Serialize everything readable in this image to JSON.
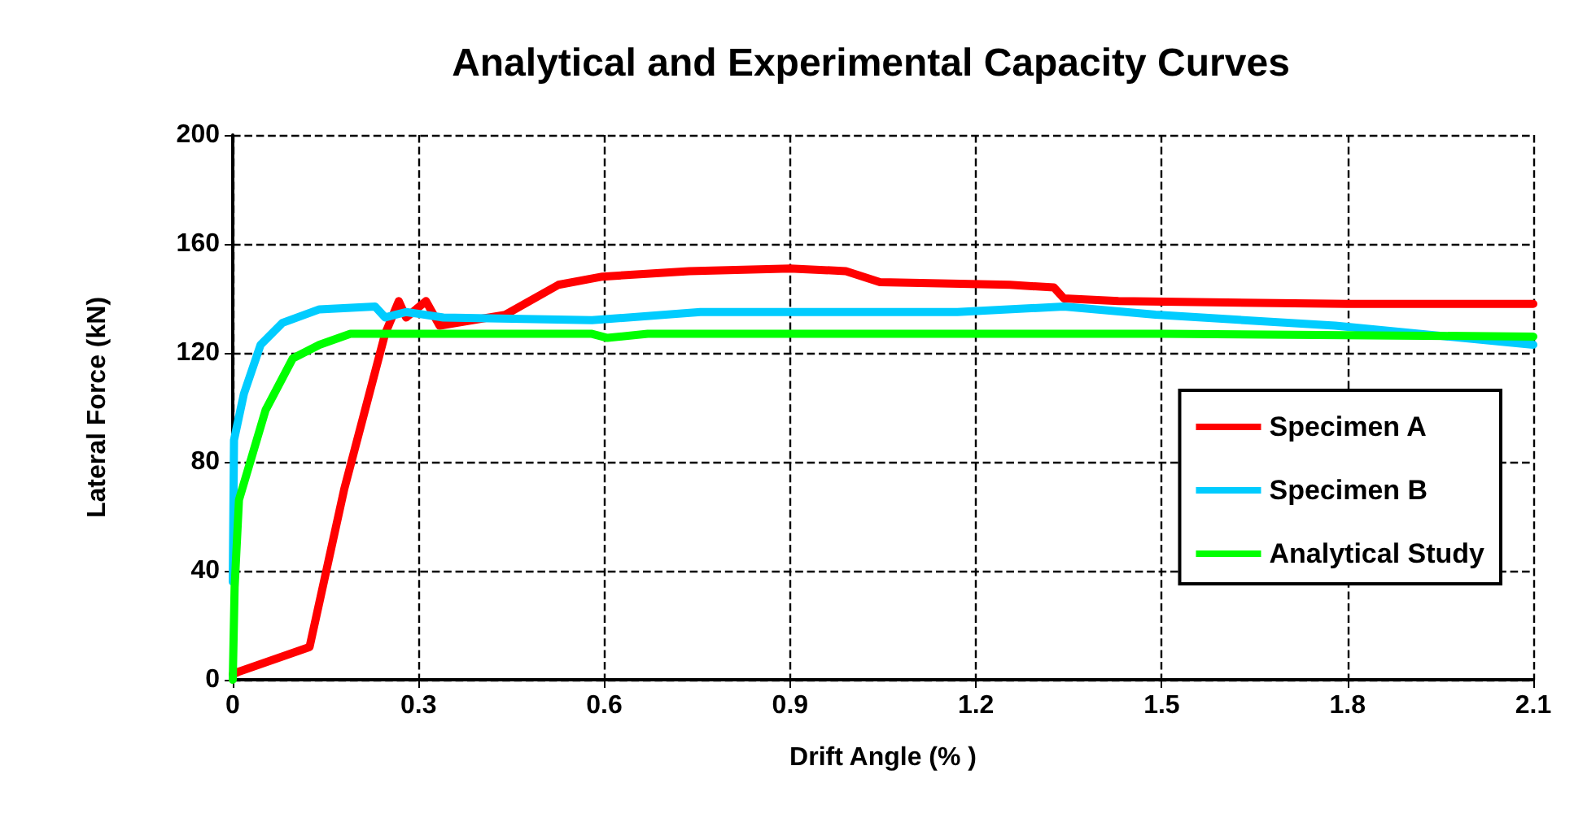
{
  "chart_data": {
    "type": "line",
    "title": "Analytical and Experimental Capacity Curves",
    "xlabel": "Drift Angle (% )",
    "ylabel": "Lateral Force (kN)",
    "xlim": [
      0,
      2.1
    ],
    "xticks": [
      0,
      0.3,
      0.6,
      0.9,
      1.2,
      1.5,
      1.8,
      2.1
    ],
    "ylim": [
      0,
      200
    ],
    "yticks": [
      0,
      40,
      80,
      120,
      160,
      200
    ],
    "grid": true,
    "legend": "right",
    "marker": "none",
    "line_style": "solid",
    "series": [
      {
        "name": "Specimen A",
        "color": "#ff0000",
        "x": [
          0,
          0.01,
          0.124,
          0.18,
          0.246,
          0.268,
          0.28,
          0.312,
          0.334,
          0.44,
          0.526,
          0.597,
          0.737,
          0.9,
          0.99,
          1.045,
          1.255,
          1.326,
          1.342,
          1.43,
          1.8,
          2.1
        ],
        "values": [
          2,
          3,
          12,
          70,
          127,
          139,
          133,
          139,
          130,
          134,
          145,
          148,
          150,
          151,
          150,
          146,
          145,
          144,
          140,
          139,
          138,
          138
        ]
      },
      {
        "name": "Specimen B",
        "color": "#00ccff",
        "x": [
          0,
          0.002,
          0.018,
          0.045,
          0.08,
          0.14,
          0.23,
          0.246,
          0.28,
          0.34,
          0.58,
          0.755,
          1.17,
          1.342,
          1.49,
          1.78,
          2.1
        ],
        "values": [
          36,
          88,
          105,
          123,
          131,
          136,
          137,
          133,
          135,
          133,
          132,
          135,
          135,
          137,
          134,
          130,
          123
        ]
      },
      {
        "name": "Analytical Study",
        "color": "#00ff00",
        "x": [
          0,
          0.003,
          0.01,
          0.053,
          0.097,
          0.14,
          0.19,
          0.32,
          0.58,
          0.605,
          0.67,
          1.0,
          1.5,
          2.1
        ],
        "values": [
          0,
          34,
          66,
          99,
          118,
          123,
          127,
          127,
          127,
          125.5,
          127,
          127,
          127,
          126
        ]
      }
    ]
  }
}
